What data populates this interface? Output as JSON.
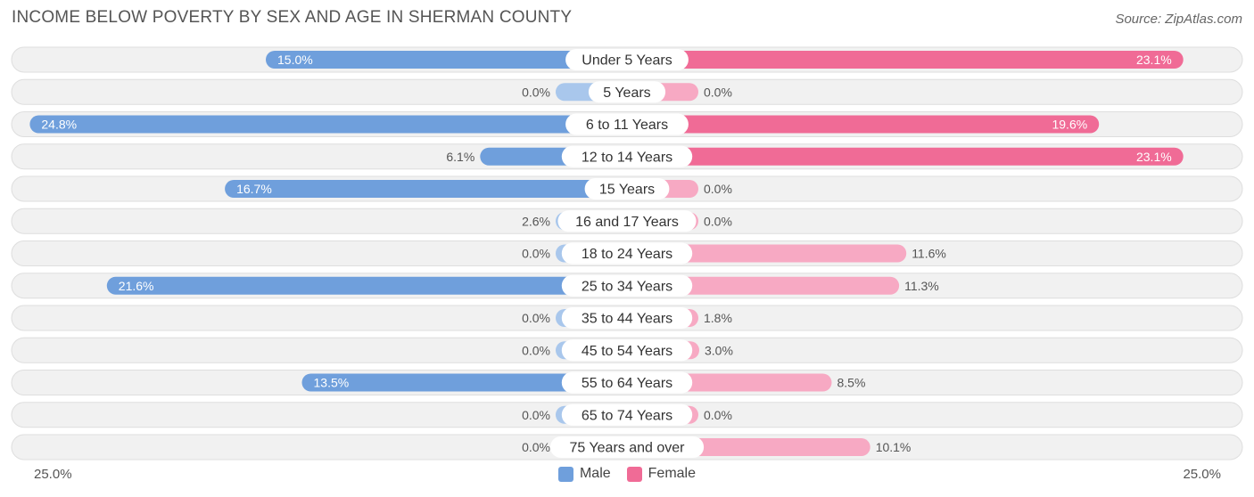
{
  "header": {
    "title": "INCOME BELOW POVERTY BY SEX AND AGE IN SHERMAN COUNTY",
    "source": "Source: ZipAtlas.com"
  },
  "colors": {
    "male": "#6f9fdc",
    "male_light": "#a9c7ec",
    "female": "#f06b96",
    "female_light": "#f7a9c3",
    "row_bg": "#f1f1f1",
    "row_border": "#dedede"
  },
  "chart_data": {
    "type": "bar",
    "orientation": "horizontal-diverging",
    "title": "INCOME BELOW POVERTY BY SEX AND AGE IN SHERMAN COUNTY",
    "categories": [
      "Under 5 Years",
      "5 Years",
      "6 to 11 Years",
      "12 to 14 Years",
      "15 Years",
      "16 and 17 Years",
      "18 to 24 Years",
      "25 to 34 Years",
      "35 to 44 Years",
      "45 to 54 Years",
      "55 to 64 Years",
      "65 to 74 Years",
      "75 Years and over"
    ],
    "series": [
      {
        "name": "Male",
        "values": [
          15.0,
          0.0,
          24.8,
          6.1,
          16.7,
          2.6,
          0.0,
          21.6,
          0.0,
          0.0,
          13.5,
          0.0,
          0.0
        ],
        "labels": [
          "15.0%",
          "0.0%",
          "24.8%",
          "6.1%",
          "16.7%",
          "2.6%",
          "0.0%",
          "21.6%",
          "0.0%",
          "0.0%",
          "13.5%",
          "0.0%",
          "0.0%"
        ]
      },
      {
        "name": "Female",
        "values": [
          23.1,
          0.0,
          19.6,
          23.1,
          0.0,
          0.0,
          11.6,
          11.3,
          1.8,
          3.0,
          8.5,
          0.0,
          10.1
        ],
        "labels": [
          "23.1%",
          "0.0%",
          "19.6%",
          "23.1%",
          "0.0%",
          "0.0%",
          "11.6%",
          "11.3%",
          "1.8%",
          "3.0%",
          "8.5%",
          "0.0%",
          "10.1%"
        ]
      }
    ],
    "xlim": [
      -25.0,
      25.0
    ],
    "axis_labels": {
      "left": "25.0%",
      "right": "25.0%"
    },
    "legend": [
      "Male",
      "Female"
    ],
    "legend_position": "bottom-center"
  }
}
